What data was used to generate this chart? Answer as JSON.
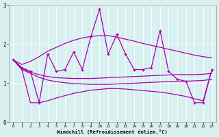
{
  "xlabel": "Windchill (Refroidissement éolien,°C)",
  "x": [
    0,
    1,
    2,
    3,
    4,
    5,
    6,
    7,
    8,
    9,
    10,
    11,
    12,
    13,
    14,
    15,
    16,
    17,
    18,
    19,
    20,
    21,
    22,
    23
  ],
  "y_main": [
    1.6,
    1.4,
    1.3,
    0.5,
    1.75,
    1.3,
    1.35,
    1.8,
    1.35,
    2.2,
    2.9,
    1.75,
    2.25,
    1.75,
    1.35,
    1.35,
    1.4,
    2.35,
    1.3,
    1.1,
    1.05,
    0.5,
    0.5,
    1.35
  ],
  "y_upper": [
    1.6,
    1.48,
    1.56,
    1.68,
    1.82,
    1.92,
    2.02,
    2.1,
    2.16,
    2.2,
    2.22,
    2.22,
    2.18,
    2.13,
    2.08,
    2.02,
    1.97,
    1.92,
    1.87,
    1.82,
    1.77,
    1.72,
    1.68,
    1.65
  ],
  "y_mid": [
    1.6,
    1.38,
    1.28,
    1.22,
    1.17,
    1.14,
    1.13,
    1.12,
    1.12,
    1.12,
    1.13,
    1.14,
    1.15,
    1.16,
    1.17,
    1.18,
    1.19,
    1.2,
    1.21,
    1.22,
    1.22,
    1.22,
    1.23,
    1.25
  ],
  "y_lower": [
    1.6,
    1.35,
    1.25,
    1.15,
    1.08,
    1.04,
    1.01,
    0.99,
    0.98,
    0.97,
    0.97,
    0.97,
    0.98,
    0.99,
    1.0,
    1.01,
    1.02,
    1.03,
    1.04,
    1.05,
    1.05,
    1.06,
    1.07,
    1.1
  ],
  "y_bottom": [
    1.6,
    1.35,
    0.5,
    0.5,
    0.55,
    0.62,
    0.68,
    0.74,
    0.78,
    0.82,
    0.84,
    0.86,
    0.86,
    0.85,
    0.83,
    0.81,
    0.79,
    0.77,
    0.74,
    0.7,
    0.66,
    0.6,
    0.55,
    1.35
  ],
  "line_color": "#aa00aa",
  "bg_color": "#d8f0f0",
  "grid_color": "#b8dede",
  "ylim": [
    0,
    3
  ],
  "xlim": [
    -0.5,
    23.5
  ],
  "yticks": [
    0,
    1,
    2,
    3
  ],
  "xticks": [
    0,
    1,
    2,
    3,
    4,
    5,
    6,
    7,
    8,
    9,
    10,
    11,
    12,
    13,
    14,
    15,
    16,
    17,
    18,
    19,
    20,
    21,
    22,
    23
  ]
}
